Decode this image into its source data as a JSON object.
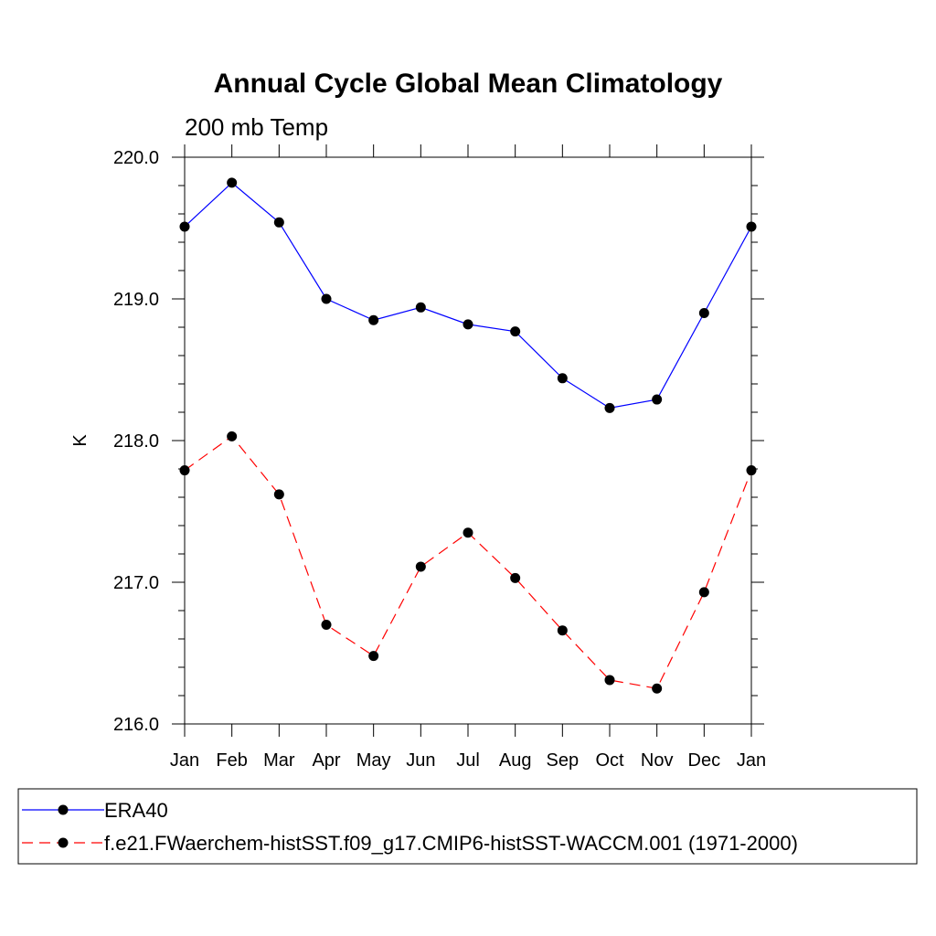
{
  "chart_data": {
    "type": "line",
    "title": "Annual Cycle Global Mean Climatology",
    "subtitle": "200 mb Temp",
    "ylabel": "K",
    "xlabel": "",
    "ylim": [
      216.0,
      220.0
    ],
    "yticks": [
      "216.0",
      "217.0",
      "218.0",
      "219.0",
      "220.0"
    ],
    "categories": [
      "Jan",
      "Feb",
      "Mar",
      "Apr",
      "May",
      "Jun",
      "Jul",
      "Aug",
      "Sep",
      "Oct",
      "Nov",
      "Dec",
      "Jan"
    ],
    "series": [
      {
        "name": "ERA40",
        "color": "#0000ff",
        "dash": "solid",
        "values": [
          219.51,
          219.82,
          219.54,
          219.0,
          218.85,
          218.94,
          218.82,
          218.77,
          218.44,
          218.23,
          218.29,
          218.9,
          219.51
        ]
      },
      {
        "name": "f.e21.FWaerchem-histSST.f09_g17.CMIP6-histSST-WACCM.001 (1971-2000)",
        "color": "#ff0000",
        "dash": "dashed",
        "values": [
          217.79,
          218.03,
          217.62,
          216.7,
          216.48,
          217.11,
          217.35,
          217.03,
          216.66,
          216.31,
          216.25,
          216.93,
          217.79
        ]
      }
    ],
    "grid": false,
    "legend_position": "bottom"
  }
}
